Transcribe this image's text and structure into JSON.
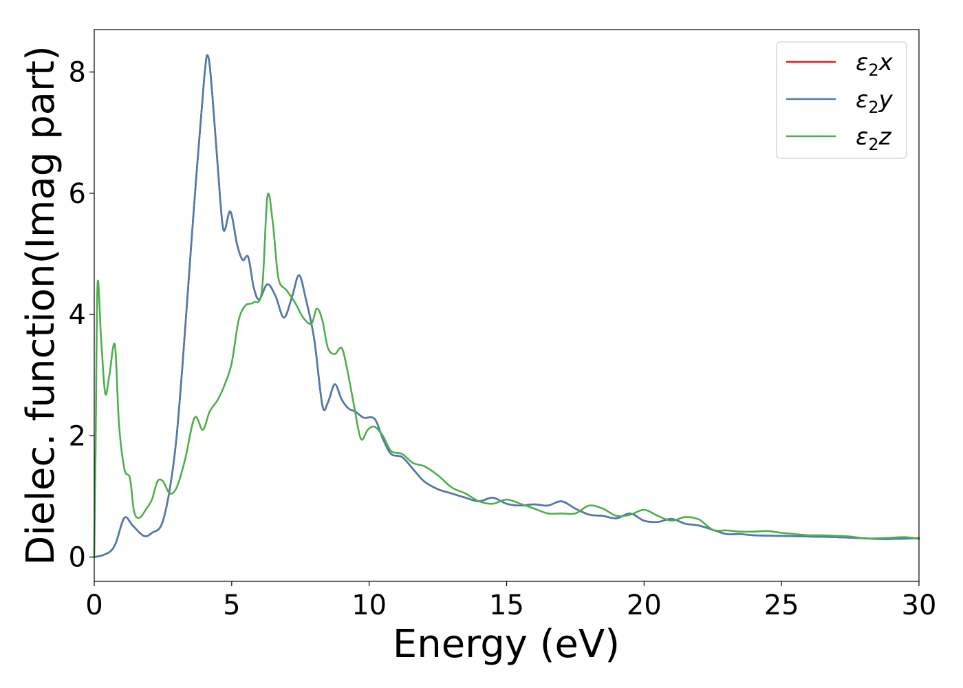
{
  "chart_data": {
    "type": "line",
    "xlabel": "Energy (eV)",
    "ylabel": "Dielec. function(Imag part)",
    "xlim": [
      0,
      30
    ],
    "ylim": [
      -0.4,
      8.7
    ],
    "xticks": [
      0,
      5,
      10,
      15,
      20,
      25,
      30
    ],
    "yticks": [
      0,
      2,
      4,
      6,
      8
    ],
    "grid": false,
    "legend_position": "top-right",
    "series": [
      {
        "name": "ε2x",
        "legend_main": "ε",
        "legend_sub": "2",
        "legend_suffix": "x",
        "color": "#e41a1c",
        "x": [
          0,
          0.3,
          0.6,
          0.8,
          1.1,
          1.4,
          1.8,
          2.1,
          2.5,
          2.9,
          3.2,
          3.6,
          4.0,
          4.15,
          4.3,
          4.5,
          4.7,
          4.95,
          5.2,
          5.4,
          5.6,
          5.8,
          6.0,
          6.3,
          6.6,
          6.9,
          7.2,
          7.45,
          7.7,
          8.0,
          8.3,
          8.5,
          8.75,
          9.0,
          9.25,
          9.5,
          9.8,
          10.2,
          10.5,
          10.8,
          11.2,
          11.6,
          12.0,
          12.5,
          13.0,
          13.5,
          14.0,
          14.5,
          15.0,
          15.5,
          16.0,
          16.5,
          17.0,
          17.5,
          18.0,
          18.5,
          19.0,
          19.5,
          20.0,
          20.5,
          21.0,
          21.5,
          22.0,
          22.5,
          23.0,
          23.5,
          24.0,
          25.0,
          26.0,
          27.0,
          28.0,
          28.5,
          29.0,
          30.0
        ],
        "values": [
          0,
          0.03,
          0.1,
          0.25,
          0.65,
          0.52,
          0.35,
          0.4,
          0.6,
          1.6,
          3.1,
          5.6,
          7.9,
          8.25,
          7.6,
          6.4,
          5.4,
          5.7,
          5.15,
          4.9,
          4.95,
          4.45,
          4.25,
          4.5,
          4.3,
          3.95,
          4.3,
          4.65,
          4.25,
          3.6,
          2.5,
          2.55,
          2.85,
          2.6,
          2.45,
          2.4,
          2.3,
          2.28,
          1.95,
          1.7,
          1.65,
          1.45,
          1.25,
          1.12,
          1.05,
          0.98,
          0.92,
          0.98,
          0.88,
          0.85,
          0.87,
          0.85,
          0.92,
          0.8,
          0.7,
          0.68,
          0.64,
          0.72,
          0.6,
          0.58,
          0.63,
          0.55,
          0.52,
          0.45,
          0.38,
          0.38,
          0.36,
          0.35,
          0.34,
          0.33,
          0.31,
          0.3,
          0.3,
          0.31
        ]
      },
      {
        "name": "ε2y",
        "legend_main": "ε",
        "legend_sub": "2",
        "legend_suffix": "y",
        "color": "#4a7cb0",
        "x": [
          0,
          0.3,
          0.6,
          0.8,
          1.1,
          1.4,
          1.8,
          2.1,
          2.5,
          2.9,
          3.2,
          3.6,
          4.0,
          4.15,
          4.3,
          4.5,
          4.7,
          4.95,
          5.2,
          5.4,
          5.6,
          5.8,
          6.0,
          6.3,
          6.6,
          6.9,
          7.2,
          7.45,
          7.7,
          8.0,
          8.3,
          8.5,
          8.75,
          9.0,
          9.25,
          9.5,
          9.8,
          10.2,
          10.5,
          10.8,
          11.2,
          11.6,
          12.0,
          12.5,
          13.0,
          13.5,
          14.0,
          14.5,
          15.0,
          15.5,
          16.0,
          16.5,
          17.0,
          17.5,
          18.0,
          18.5,
          19.0,
          19.5,
          20.0,
          20.5,
          21.0,
          21.5,
          22.0,
          22.5,
          23.0,
          23.5,
          24.0,
          25.0,
          26.0,
          27.0,
          28.0,
          28.5,
          29.0,
          30.0
        ],
        "values": [
          0,
          0.03,
          0.1,
          0.25,
          0.65,
          0.52,
          0.35,
          0.4,
          0.6,
          1.6,
          3.1,
          5.6,
          7.9,
          8.25,
          7.6,
          6.4,
          5.4,
          5.7,
          5.15,
          4.9,
          4.95,
          4.45,
          4.25,
          4.5,
          4.3,
          3.95,
          4.3,
          4.65,
          4.25,
          3.6,
          2.5,
          2.55,
          2.85,
          2.6,
          2.45,
          2.4,
          2.3,
          2.28,
          1.95,
          1.7,
          1.65,
          1.45,
          1.25,
          1.12,
          1.05,
          0.98,
          0.92,
          0.98,
          0.88,
          0.85,
          0.87,
          0.85,
          0.92,
          0.8,
          0.7,
          0.68,
          0.64,
          0.72,
          0.6,
          0.58,
          0.63,
          0.55,
          0.52,
          0.45,
          0.38,
          0.38,
          0.36,
          0.35,
          0.34,
          0.33,
          0.31,
          0.3,
          0.3,
          0.31
        ]
      },
      {
        "name": "ε2z",
        "legend_main": "ε",
        "legend_sub": "2",
        "legend_suffix": "z",
        "color": "#4daf4a",
        "x": [
          0,
          0.05,
          0.12,
          0.25,
          0.4,
          0.55,
          0.75,
          0.9,
          1.1,
          1.3,
          1.45,
          1.65,
          1.9,
          2.1,
          2.3,
          2.5,
          2.75,
          3.0,
          3.3,
          3.65,
          3.95,
          4.2,
          4.5,
          4.75,
          5.0,
          5.25,
          5.5,
          5.8,
          6.1,
          6.3,
          6.5,
          6.7,
          7.0,
          7.3,
          7.6,
          7.9,
          8.1,
          8.3,
          8.5,
          8.75,
          9.0,
          9.2,
          9.45,
          9.7,
          9.95,
          10.2,
          10.5,
          10.8,
          11.2,
          11.6,
          12.0,
          12.5,
          13.0,
          13.5,
          14.0,
          14.5,
          15.0,
          15.5,
          16.0,
          16.5,
          17.0,
          17.5,
          18.0,
          18.5,
          19.0,
          19.5,
          20.0,
          20.5,
          21.0,
          21.5,
          22.0,
          22.5,
          23.0,
          23.5,
          24.0,
          24.5,
          25.0,
          25.5,
          26.0,
          26.5,
          27.0,
          27.5,
          28.0,
          28.5,
          29.0,
          29.5,
          30.0
        ],
        "values": [
          0,
          1.8,
          4.5,
          3.6,
          2.7,
          3.0,
          3.5,
          2.2,
          1.45,
          1.3,
          0.75,
          0.65,
          0.8,
          0.95,
          1.25,
          1.25,
          1.05,
          1.15,
          1.6,
          2.3,
          2.1,
          2.4,
          2.6,
          2.85,
          3.2,
          3.9,
          4.15,
          4.2,
          4.4,
          5.95,
          5.5,
          4.6,
          4.4,
          4.2,
          3.95,
          3.85,
          4.1,
          3.9,
          3.45,
          3.35,
          3.45,
          3.1,
          2.5,
          1.95,
          2.1,
          2.15,
          2.0,
          1.75,
          1.7,
          1.55,
          1.5,
          1.35,
          1.15,
          1.05,
          0.92,
          0.88,
          0.95,
          0.88,
          0.8,
          0.72,
          0.72,
          0.72,
          0.85,
          0.8,
          0.68,
          0.7,
          0.78,
          0.68,
          0.6,
          0.66,
          0.62,
          0.45,
          0.44,
          0.42,
          0.42,
          0.43,
          0.4,
          0.38,
          0.36,
          0.36,
          0.35,
          0.34,
          0.31,
          0.31,
          0.32,
          0.33,
          0.3
        ]
      }
    ]
  }
}
